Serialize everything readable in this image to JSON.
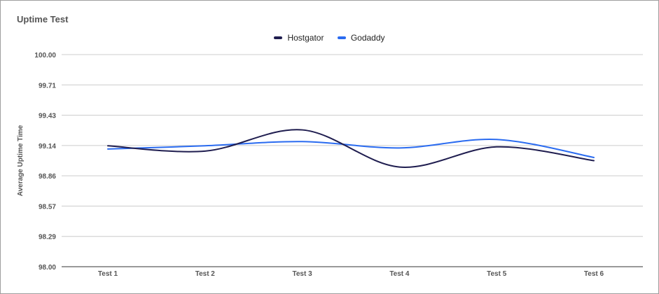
{
  "chart_data": {
    "type": "line",
    "title": "Uptime Test",
    "xlabel": "",
    "ylabel": "Average Uptime Time",
    "categories": [
      "Test 1",
      "Test 2",
      "Test 3",
      "Test 4",
      "Test 5",
      "Test 6"
    ],
    "y_ticks": [
      "100.00",
      "99.71",
      "99.43",
      "99.14",
      "98.86",
      "98.57",
      "98.29",
      "98.00"
    ],
    "ylim": [
      98.0,
      100.0
    ],
    "series": [
      {
        "name": "Hostgator",
        "color": "#1f1d4f",
        "values": [
          99.14,
          99.09,
          99.29,
          98.94,
          99.13,
          99.0
        ]
      },
      {
        "name": "Godaddy",
        "color": "#2a6bf0",
        "values": [
          99.11,
          99.14,
          99.18,
          99.12,
          99.2,
          99.03
        ]
      }
    ],
    "grid": true,
    "legend_position": "top-center",
    "smooth": true
  }
}
